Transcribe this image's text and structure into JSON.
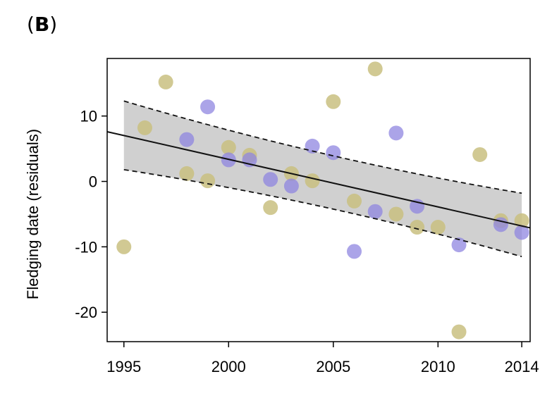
{
  "panel_label": {
    "open": "(",
    "letter": "B",
    "close": ")"
  },
  "chart_data": {
    "type": "scatter",
    "title": "",
    "xlabel": "",
    "ylabel": "Fledging date (residuals)",
    "xlim": [
      1994.2,
      2014.4
    ],
    "ylim": [
      -24.5,
      18.8
    ],
    "xticks": [
      1995,
      2000,
      2005,
      2010,
      2014
    ],
    "yticks": [
      -20,
      -10,
      0,
      10
    ],
    "grid": false,
    "legend": "none",
    "colors": {
      "series_a": "#c9c080",
      "series_b": "#8f85e0",
      "band": "#c8c8c8",
      "line": "#111111"
    },
    "series": [
      {
        "points": [
          [
            1995,
            -10.0
          ],
          [
            1996,
            8.2
          ],
          [
            1997,
            15.2
          ],
          [
            1998,
            1.2
          ],
          [
            1999,
            0.1
          ],
          [
            2000,
            5.2
          ],
          [
            2001,
            4.0
          ],
          [
            2002,
            -4.0
          ],
          [
            2003,
            1.2
          ],
          [
            2004,
            0.1
          ],
          [
            2005,
            12.2
          ],
          [
            2006,
            -3.0
          ],
          [
            2007,
            17.2
          ],
          [
            2008,
            -5.0
          ],
          [
            2009,
            -7.0
          ],
          [
            2010,
            -7.0
          ],
          [
            2011,
            -23.0
          ],
          [
            2012,
            4.1
          ],
          [
            2013,
            -6.0
          ],
          [
            2014,
            -6.0
          ]
        ]
      },
      {
        "points": [
          [
            1998,
            6.4
          ],
          [
            1999,
            11.4
          ],
          [
            2000,
            3.3
          ],
          [
            2001,
            3.3
          ],
          [
            2002,
            0.3
          ],
          [
            2003,
            -0.7
          ],
          [
            2004,
            5.4
          ],
          [
            2005,
            4.4
          ],
          [
            2006,
            -10.7
          ],
          [
            2007,
            -4.6
          ],
          [
            2008,
            7.4
          ],
          [
            2009,
            -3.8
          ],
          [
            2011,
            -9.7
          ],
          [
            2013,
            -6.6
          ],
          [
            2014,
            -7.8
          ]
        ]
      }
    ],
    "trend_line": [
      [
        1994.2,
        7.6
      ],
      [
        2014.4,
        -7.1
      ]
    ],
    "confidence_band": {
      "x": [
        1995,
        2014
      ],
      "upper": [
        12.3,
        -1.8
      ],
      "lower": [
        1.8,
        -11.5
      ]
    }
  }
}
